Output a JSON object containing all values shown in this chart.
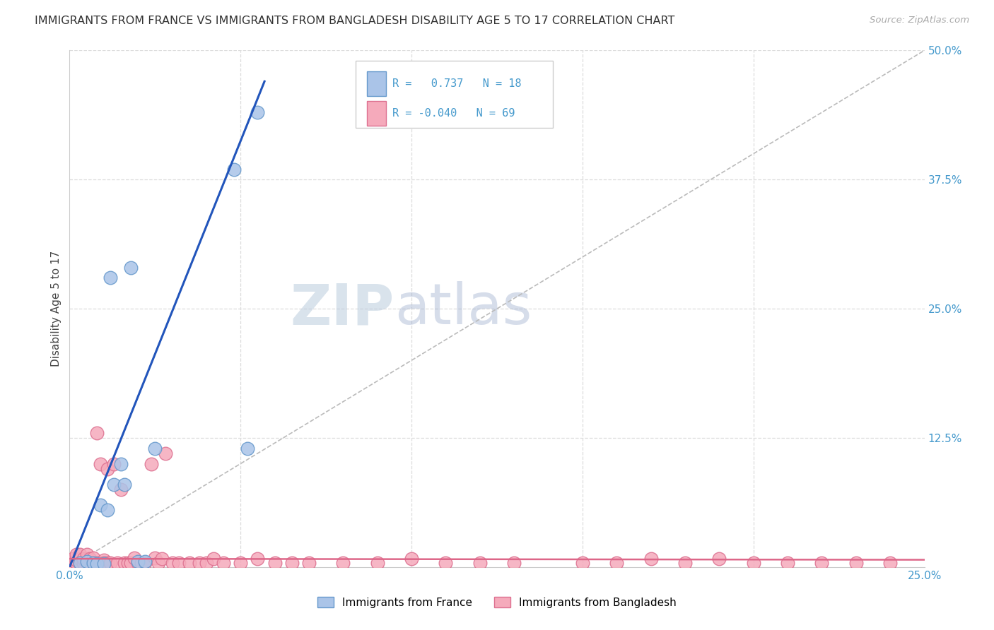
{
  "title": "IMMIGRANTS FROM FRANCE VS IMMIGRANTS FROM BANGLADESH DISABILITY AGE 5 TO 17 CORRELATION CHART",
  "source": "Source: ZipAtlas.com",
  "ylabel": "Disability Age 5 to 17",
  "xlim": [
    0.0,
    0.25
  ],
  "ylim": [
    0.0,
    0.5
  ],
  "france_color": "#aac4e8",
  "bangladesh_color": "#f5aabb",
  "france_edge": "#6699cc",
  "bangladesh_edge": "#dd7090",
  "france_R": 0.737,
  "france_N": 18,
  "bangladesh_R": -0.04,
  "bangladesh_N": 69,
  "france_line_color": "#2255bb",
  "bangladesh_line_color": "#dd6688",
  "diagonal_color": "#bbbbbb",
  "watermark_zip": "ZIP",
  "watermark_atlas": "atlas",
  "france_x": [
    0.003,
    0.005,
    0.007,
    0.008,
    0.009,
    0.01,
    0.011,
    0.012,
    0.013,
    0.015,
    0.016,
    0.018,
    0.02,
    0.022,
    0.025,
    0.048,
    0.052,
    0.055
  ],
  "france_y": [
    0.004,
    0.005,
    0.004,
    0.003,
    0.06,
    0.003,
    0.055,
    0.28,
    0.08,
    0.1,
    0.08,
    0.29,
    0.005,
    0.005,
    0.115,
    0.385,
    0.115,
    0.44
  ],
  "bangladesh_x": [
    0.001,
    0.001,
    0.002,
    0.002,
    0.002,
    0.003,
    0.003,
    0.003,
    0.004,
    0.004,
    0.005,
    0.005,
    0.005,
    0.006,
    0.006,
    0.007,
    0.007,
    0.008,
    0.008,
    0.009,
    0.009,
    0.01,
    0.01,
    0.011,
    0.011,
    0.012,
    0.013,
    0.014,
    0.015,
    0.016,
    0.017,
    0.018,
    0.019,
    0.02,
    0.021,
    0.022,
    0.024,
    0.025,
    0.026,
    0.027,
    0.028,
    0.03,
    0.032,
    0.035,
    0.038,
    0.04,
    0.042,
    0.045,
    0.05,
    0.055,
    0.06,
    0.065,
    0.07,
    0.08,
    0.09,
    0.1,
    0.11,
    0.12,
    0.13,
    0.15,
    0.16,
    0.17,
    0.18,
    0.19,
    0.2,
    0.21,
    0.22,
    0.23,
    0.24
  ],
  "bangladesh_y": [
    0.004,
    0.008,
    0.004,
    0.007,
    0.012,
    0.004,
    0.008,
    0.012,
    0.004,
    0.008,
    0.004,
    0.008,
    0.012,
    0.004,
    0.008,
    0.004,
    0.009,
    0.004,
    0.13,
    0.004,
    0.1,
    0.007,
    0.004,
    0.004,
    0.095,
    0.004,
    0.1,
    0.004,
    0.075,
    0.004,
    0.004,
    0.004,
    0.009,
    0.004,
    0.004,
    0.004,
    0.1,
    0.009,
    0.004,
    0.008,
    0.11,
    0.004,
    0.004,
    0.004,
    0.004,
    0.004,
    0.008,
    0.004,
    0.004,
    0.008,
    0.004,
    0.004,
    0.004,
    0.004,
    0.004,
    0.008,
    0.004,
    0.004,
    0.004,
    0.004,
    0.004,
    0.008,
    0.004,
    0.008,
    0.004,
    0.004,
    0.004,
    0.004,
    0.004
  ],
  "france_line_x": [
    0.0,
    0.057
  ],
  "france_line_y": [
    0.0,
    0.47
  ],
  "bangladesh_line_x": [
    0.0,
    0.25
  ],
  "bangladesh_line_y": [
    0.008,
    0.007
  ],
  "tick_color": "#4499cc",
  "grid_color": "#dddddd",
  "spine_color": "#cccccc"
}
